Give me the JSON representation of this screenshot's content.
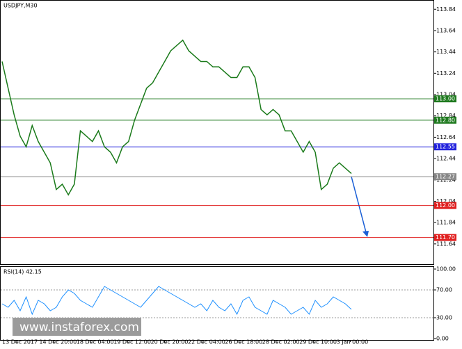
{
  "chart_data": {
    "type": "line",
    "title": "USDJPY,M30",
    "x_labels": [
      "13 Dec 2017",
      "14 Dec 20:00",
      "18 Dec 04:00",
      "19 Dec 12:00",
      "20 Dec 20:00",
      "22 Dec 04:00",
      "26 Dec 18:00",
      "28 Dec 02:00",
      "29 Dec 10:00",
      "3 Jan 00:00"
    ],
    "ylim": [
      111.45,
      113.92
    ],
    "yticks": [
      113.84,
      113.64,
      113.44,
      113.24,
      113.04,
      112.84,
      112.64,
      112.44,
      112.24,
      112.04,
      111.84,
      111.64
    ],
    "series": [
      {
        "color": "#1a7a1a",
        "values": [
          113.35,
          113.1,
          112.85,
          112.65,
          112.55,
          112.75,
          112.6,
          112.5,
          112.4,
          112.15,
          112.2,
          112.1,
          112.2,
          112.7,
          112.65,
          112.6,
          112.7,
          112.55,
          112.5,
          112.4,
          112.55,
          112.6,
          112.8,
          112.95,
          113.1,
          113.15,
          113.25,
          113.35,
          113.45,
          113.5,
          113.55,
          113.45,
          113.4,
          113.35,
          113.35,
          113.3,
          113.3,
          113.25,
          113.2,
          113.2,
          113.3,
          113.3,
          113.2,
          112.9,
          112.85,
          112.9,
          112.85,
          112.7,
          112.7,
          112.6,
          112.5,
          112.6,
          112.5,
          112.15,
          112.2,
          112.35,
          112.4,
          112.35,
          112.3
        ]
      }
    ],
    "levels": [
      {
        "value": 113,
        "label": "113.00",
        "color": "#1f7a1f"
      },
      {
        "value": 112.8,
        "label": "112.80",
        "color": "#1f7a1f"
      },
      {
        "value": 112.55,
        "label": "112.55",
        "color": "#2222dd"
      },
      {
        "value": 112.27,
        "label": "112.27",
        "color": "#888888"
      },
      {
        "value": 112,
        "label": "112.00",
        "color": "#e02020"
      },
      {
        "value": 111.7,
        "label": "111.70",
        "color": "#e02020"
      }
    ],
    "rsi": {
      "title": "RSI(14) 42.15",
      "color": "#1e90ff",
      "ylim": [
        0,
        100
      ],
      "yticks": [
        {
          "value": 100,
          "label": "100.00"
        },
        {
          "value": 70,
          "label": "70.00"
        },
        {
          "value": 30,
          "label": "30.00"
        },
        {
          "value": 0,
          "label": "0.00"
        }
      ],
      "values": [
        50,
        45,
        55,
        40,
        60,
        35,
        55,
        50,
        40,
        45,
        60,
        70,
        65,
        55,
        50,
        45,
        60,
        75,
        70,
        65,
        60,
        55,
        50,
        45,
        55,
        65,
        75,
        70,
        65,
        60,
        55,
        50,
        45,
        50,
        40,
        55,
        45,
        40,
        50,
        35,
        55,
        60,
        45,
        40,
        35,
        55,
        50,
        45,
        35,
        40,
        45,
        35,
        55,
        45,
        50,
        60,
        55,
        50,
        42
      ]
    },
    "watermark": "www.instaforex.com"
  }
}
